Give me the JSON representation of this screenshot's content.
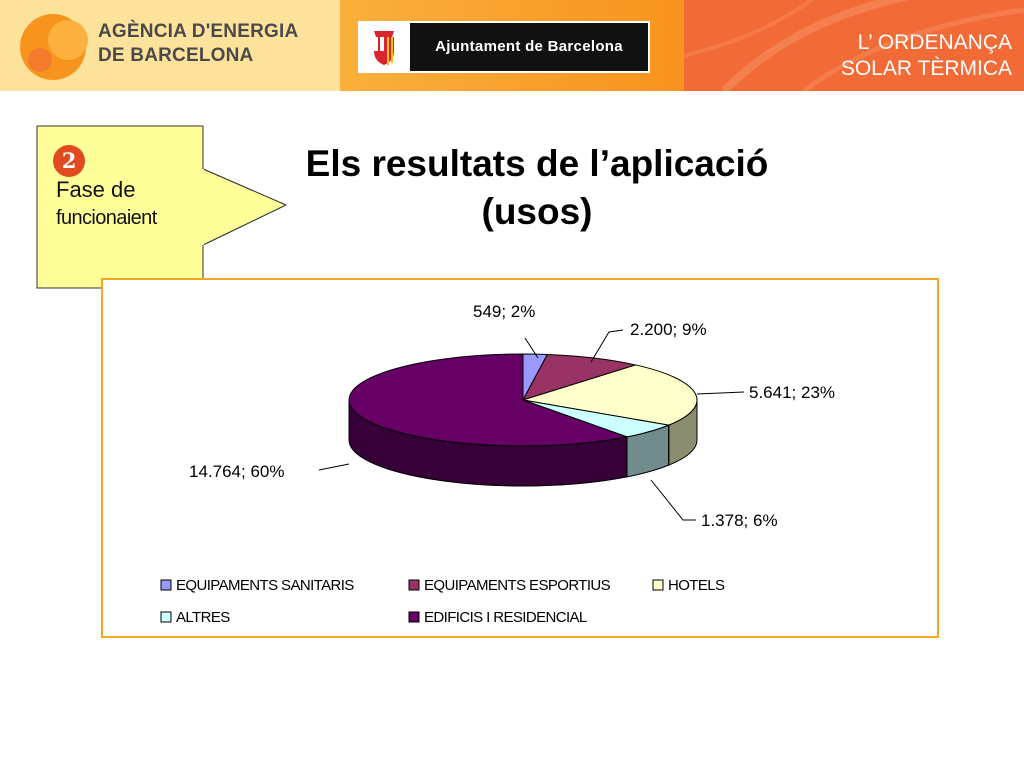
{
  "header": {
    "agency_line1": "AGÈNCIA D'ENERGIA",
    "agency_line2": "DE BARCELONA",
    "ajuntament": "Ajuntament de Barcelona",
    "caption_line1": "L’ ORDENANÇA",
    "caption_line2": "SOLAR TÈRMICA"
  },
  "phase": {
    "number": "2",
    "line1": "Fase de",
    "line2": "funcionaient"
  },
  "title": {
    "line1": "Els resultats de l’aplicació",
    "line2": "(usos)"
  },
  "chart_data": {
    "type": "pie",
    "slices": [
      {
        "name": "EQUIPAMENTS SANITARIS",
        "value": 549,
        "percent": 2,
        "label": "549; 2%",
        "color": "#9999ff"
      },
      {
        "name": "EQUIPAMENTS ESPORTIUS",
        "value": 2200,
        "percent": 9,
        "label": "2.200; 9%",
        "color": "#993366"
      },
      {
        "name": "HOTELS",
        "value": 5641,
        "percent": 23,
        "label": "5.641; 23%",
        "color": "#ffffcc"
      },
      {
        "name": "ALTRES",
        "value": 1378,
        "percent": 6,
        "label": "1.378; 6%",
        "color": "#ccffff"
      },
      {
        "name": "EDIFICIS I RESIDENCIAL",
        "value": 14764,
        "percent": 60,
        "label": "14.764; 60%",
        "color": "#660066"
      }
    ],
    "legend_position": "bottom"
  }
}
